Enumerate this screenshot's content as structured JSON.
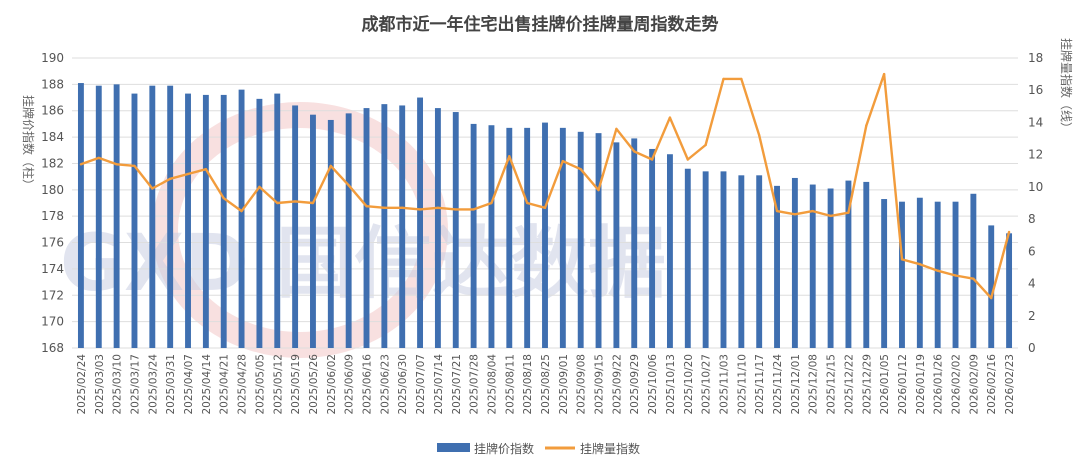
{
  "chart_data": {
    "type": "bar",
    "title": "成都市近一年住宅出售挂牌价挂牌量周指数走势",
    "y_left_label": "挂牌价指数（柱）",
    "y_right_label": "挂牌量指数（线）",
    "ylim_left": [
      168,
      190
    ],
    "ylim_right": [
      0,
      18
    ],
    "y_left_ticks": [
      "168",
      "170",
      "172",
      "174",
      "176",
      "178",
      "180",
      "182",
      "184",
      "186",
      "188",
      "190"
    ],
    "y_right_ticks": [
      "0",
      "2",
      "4",
      "6",
      "8",
      "10",
      "12",
      "14",
      "16",
      "18"
    ],
    "grid": true,
    "legend_position": "bottom",
    "watermark": "GXD 国信达数据",
    "categories": [
      "2025/02/24",
      "2025/03/03",
      "2025/03/10",
      "2025/03/17",
      "2025/03/24",
      "2025/03/31",
      "2025/04/07",
      "2025/04/14",
      "2025/04/21",
      "2025/04/28",
      "2025/05/05",
      "2025/05/12",
      "2025/05/19",
      "2025/05/26",
      "2025/06/02",
      "2025/06/09",
      "2025/06/16",
      "2025/06/23",
      "2025/06/30",
      "2025/07/07",
      "2025/07/14",
      "2025/07/21",
      "2025/07/28",
      "2025/08/04",
      "2025/08/11",
      "2025/08/18",
      "2025/08/25",
      "2025/09/01",
      "2025/09/08",
      "2025/09/15",
      "2025/09/22",
      "2025/09/29",
      "2025/10/06",
      "2025/10/13",
      "2025/10/20",
      "2025/10/27",
      "2025/11/03",
      "2025/11/10",
      "2025/11/17",
      "2025/11/24",
      "2025/12/01",
      "2025/12/08",
      "2025/12/15",
      "2025/12/22",
      "2025/12/29",
      "2026/01/05",
      "2026/01/12",
      "2026/01/19",
      "2026/01/26",
      "2026/02/02",
      "2026/02/09",
      "2026/02/16",
      "2026/02/23"
    ],
    "series": [
      {
        "name": "挂牌价指数",
        "type": "bar",
        "axis": "left",
        "color": "#3f6fb0",
        "values": [
          188.1,
          187.9,
          188.0,
          187.3,
          187.9,
          187.9,
          187.3,
          187.2,
          187.2,
          187.6,
          186.9,
          187.3,
          186.4,
          185.7,
          185.3,
          185.8,
          186.2,
          186.5,
          186.4,
          187.0,
          186.2,
          185.9,
          185.0,
          184.9,
          184.7,
          184.7,
          185.1,
          184.7,
          184.4,
          184.3,
          183.6,
          183.9,
          183.1,
          182.7,
          181.6,
          181.4,
          181.4,
          181.1,
          181.1,
          180.3,
          180.9,
          180.4,
          180.1,
          180.7,
          180.6,
          179.3,
          179.1,
          179.4,
          179.1,
          179.1,
          179.7,
          177.3,
          176.7
        ]
      },
      {
        "name": "挂牌量指数",
        "type": "line",
        "axis": "right",
        "color": "#f29c3c",
        "values": [
          11.4,
          11.8,
          11.4,
          11.3,
          9.9,
          10.5,
          10.8,
          11.1,
          9.3,
          8.5,
          10.0,
          9.0,
          9.1,
          9.0,
          11.3,
          10.1,
          8.8,
          8.7,
          8.7,
          8.6,
          8.7,
          8.6,
          8.6,
          9.0,
          11.9,
          9.0,
          8.7,
          11.6,
          11.1,
          9.8,
          13.6,
          12.2,
          11.7,
          14.3,
          11.7,
          12.6,
          16.7,
          16.7,
          13.2,
          8.5,
          8.3,
          8.5,
          8.2,
          8.4,
          13.8,
          17.0,
          5.5,
          5.2,
          4.8,
          4.5,
          4.3,
          3.1,
          7.2
        ]
      }
    ]
  }
}
